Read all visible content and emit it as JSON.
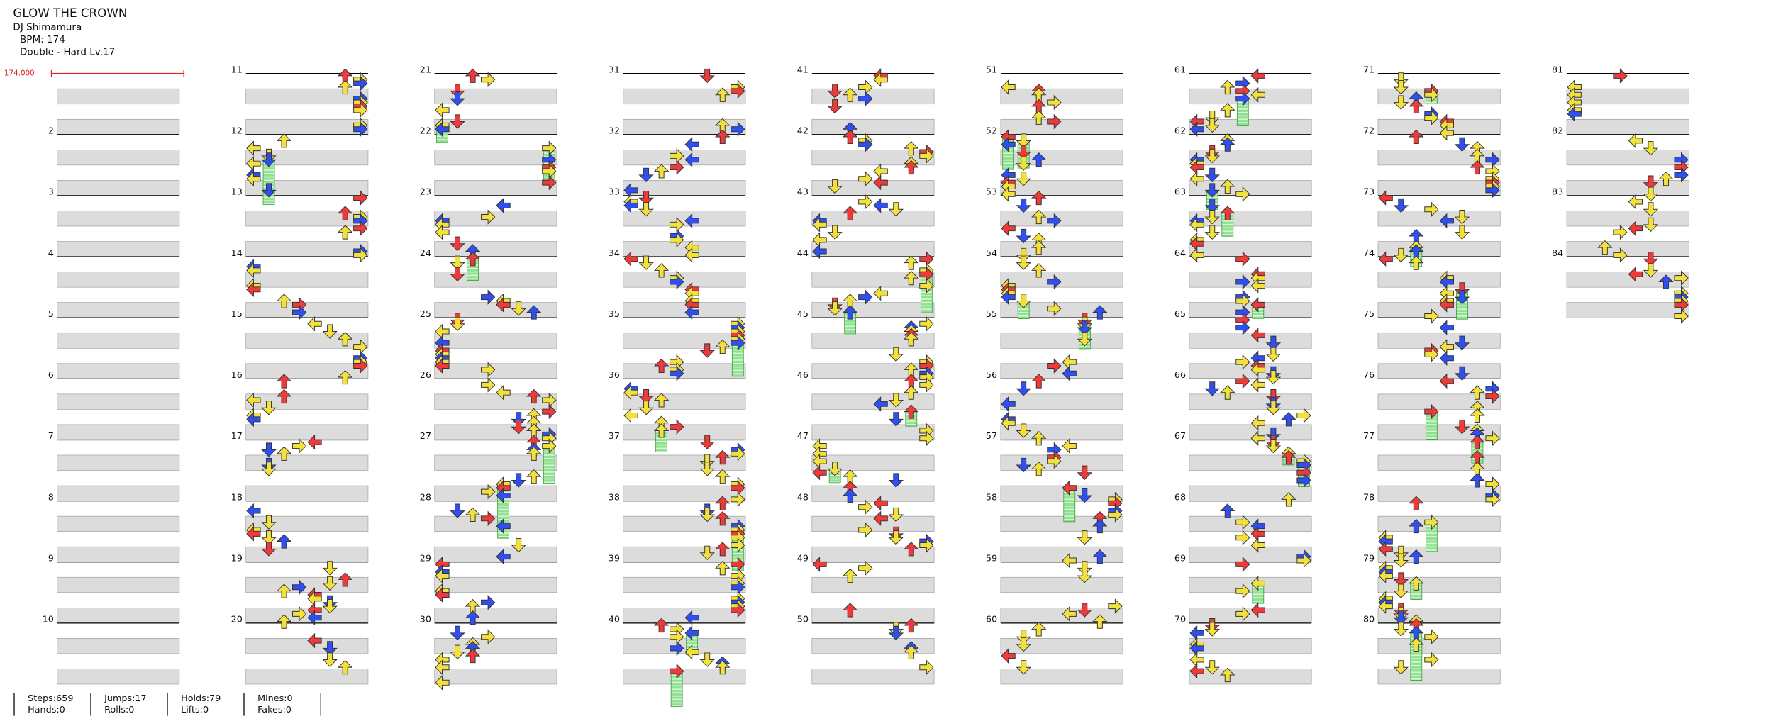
{
  "header": {
    "title": "GLOW THE CROWN",
    "artist": "DJ Shimamura",
    "bpm": "BPM: 174",
    "difficulty": "Double - Hard  Lv.17"
  },
  "bpm_marker": "174.000",
  "measures": [
    [
      "2",
      "3",
      "4",
      "5",
      "6",
      "7",
      "8",
      "9",
      "10"
    ],
    [
      "11",
      "12",
      "13",
      "14",
      "15",
      "16",
      "17",
      "18",
      "19",
      "20"
    ],
    [
      "21",
      "22",
      "23",
      "24",
      "25",
      "26",
      "27",
      "28",
      "29",
      "30"
    ],
    [
      "31",
      "32",
      "33",
      "34",
      "35",
      "36",
      "37",
      "38",
      "39",
      "40"
    ],
    [
      "41",
      "42",
      "43",
      "44",
      "45",
      "46",
      "47",
      "48",
      "49",
      "50"
    ],
    [
      "51",
      "52",
      "53",
      "54",
      "55",
      "56",
      "57",
      "58",
      "59",
      "60"
    ],
    [
      "61",
      "62",
      "63",
      "64",
      "65",
      "66",
      "67",
      "68",
      "69",
      "70"
    ],
    [
      "71",
      "72",
      "73",
      "74",
      "75",
      "76",
      "77",
      "78",
      "79",
      "80"
    ],
    [
      "81",
      "82",
      "83",
      "84"
    ]
  ],
  "stats": [
    [
      "Steps:659",
      "Hands:0"
    ],
    [
      "Jumps:17",
      "Rolls:0"
    ],
    [
      "Holds:79",
      "Lifts:0"
    ],
    [
      "Mines:0",
      "Fakes:0"
    ]
  ]
}
